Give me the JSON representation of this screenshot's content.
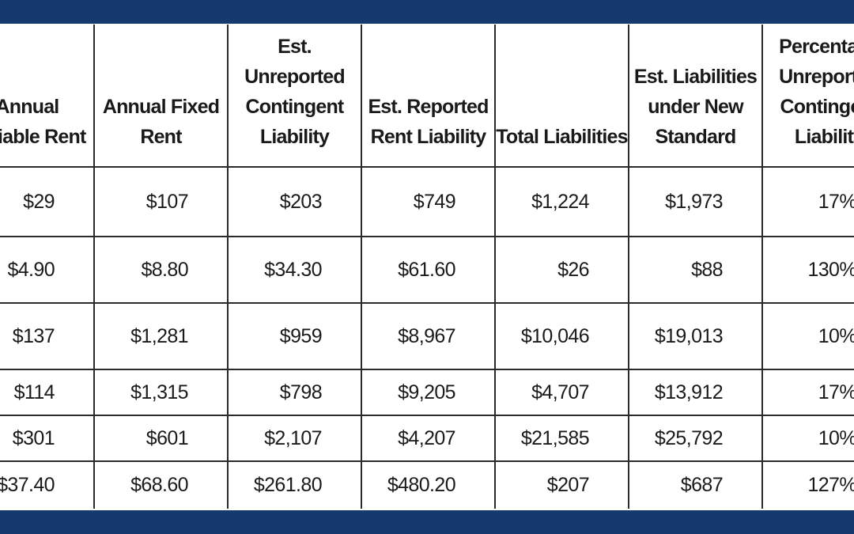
{
  "table": {
    "columns": [
      "Annual Variable Rent",
      "Annual Fixed Rent",
      "Est. Unreported Contingent Liability",
      "Est. Reported Rent Liability",
      "Total Liabilities",
      "Est. Liabilities under New Standard",
      "Percentage Unreported Contingent Liability"
    ],
    "rows": [
      [
        "$29",
        "$107",
        "$203",
        "$749",
        "$1,224",
        "$1,973",
        "17%"
      ],
      [
        "$4.90",
        "$8.80",
        "$34.30",
        "$61.60",
        "$26",
        "$88",
        "130%"
      ],
      [
        "$137",
        "$1,281",
        "$959",
        "$8,967",
        "$10,046",
        "$19,013",
        "10%"
      ],
      [
        "$114",
        "$1,315",
        "$798",
        "$9,205",
        "$4,707",
        "$13,912",
        "17%"
      ],
      [
        "$301",
        "$601",
        "$2,107",
        "$4,207",
        "$21,585",
        "$25,792",
        "10%"
      ],
      [
        "$37.40",
        "$68.60",
        "$261.80",
        "$480.20",
        "$207",
        "$687",
        "127%"
      ]
    ]
  }
}
